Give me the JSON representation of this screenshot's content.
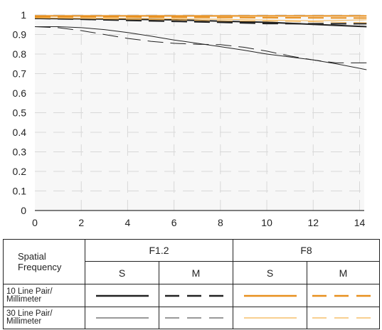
{
  "chart_data": {
    "type": "line",
    "xlim": [
      0,
      14
    ],
    "ylim": [
      0,
      1
    ],
    "xticks": [
      "0",
      "2",
      "4",
      "6",
      "8",
      "10",
      "12",
      "14"
    ],
    "yticks": [
      "0",
      "0.1",
      "0.2",
      "0.3",
      "0.4",
      "0.5",
      "0.6",
      "0.7",
      "0.8",
      "0.9",
      "1"
    ],
    "grid": true,
    "series": [
      {
        "name": "F1.2 S 10 Line Pair/Millimeter",
        "color": "#222222",
        "style": "solid",
        "width": 2.0,
        "x": [
          0,
          2,
          4,
          6,
          8,
          10,
          12,
          14.3
        ],
        "y": [
          0.982,
          0.98,
          0.978,
          0.975,
          0.968,
          0.962,
          0.952,
          0.94
        ]
      },
      {
        "name": "F1.2 M 10 Line Pair/Millimeter",
        "color": "#222222",
        "style": "dashed",
        "width": 2.0,
        "x": [
          0,
          2,
          4,
          6,
          8,
          10,
          12,
          14.3
        ],
        "y": [
          0.982,
          0.978,
          0.972,
          0.967,
          0.962,
          0.956,
          0.955,
          0.955
        ]
      },
      {
        "name": "F1.2 S 30 Line Pair/Millimeter",
        "color": "#222222",
        "style": "solid",
        "width": 1.0,
        "x": [
          0,
          1,
          2,
          3,
          4,
          5,
          6,
          7,
          8,
          9,
          10,
          11,
          12,
          13,
          14.3
        ],
        "y": [
          0.94,
          0.94,
          0.935,
          0.925,
          0.91,
          0.892,
          0.872,
          0.855,
          0.838,
          0.82,
          0.8,
          0.785,
          0.77,
          0.75,
          0.72
        ]
      },
      {
        "name": "F1.2 M 30 Line Pair/Millimeter",
        "color": "#222222",
        "style": "dashed",
        "width": 1.0,
        "x": [
          0,
          1,
          2,
          3,
          4,
          5,
          6,
          7,
          8,
          9,
          10,
          11,
          12,
          13,
          14.3
        ],
        "y": [
          0.94,
          0.935,
          0.92,
          0.9,
          0.88,
          0.865,
          0.855,
          0.85,
          0.848,
          0.835,
          0.815,
          0.79,
          0.77,
          0.755,
          0.755
        ]
      },
      {
        "name": "F8 S 10 Line Pair/Millimeter",
        "color": "#e8901e",
        "style": "solid",
        "width": 2.0,
        "x": [
          0,
          2,
          4,
          6,
          8,
          10,
          12,
          14.3
        ],
        "y": [
          0.995,
          0.995,
          0.995,
          0.995,
          0.995,
          0.995,
          0.995,
          0.995
        ]
      },
      {
        "name": "F8 M 10 Line Pair/Millimeter",
        "color": "#e8901e",
        "style": "dashed",
        "width": 2.0,
        "x": [
          0,
          2,
          4,
          6,
          8,
          10,
          12,
          14.3
        ],
        "y": [
          0.99,
          0.99,
          0.99,
          0.988,
          0.987,
          0.986,
          0.985,
          0.984
        ]
      },
      {
        "name": "F8 S 30 Line Pair/Millimeter",
        "color": "#f3b24e",
        "style": "solid",
        "width": 1.0,
        "x": [
          0,
          2,
          4,
          6,
          8,
          10,
          12,
          14.3
        ],
        "y": [
          0.985,
          0.983,
          0.982,
          0.98,
          0.978,
          0.974,
          0.97,
          0.975
        ]
      },
      {
        "name": "F8 M 30 Line Pair/Millimeter",
        "color": "#f3b24e",
        "style": "dashed",
        "width": 1.0,
        "x": [
          0,
          2,
          4,
          6,
          8,
          10,
          12,
          14.3
        ],
        "y": [
          0.985,
          0.982,
          0.978,
          0.975,
          0.97,
          0.968,
          0.965,
          0.96
        ]
      }
    ]
  },
  "legend": {
    "spatial_frequency_line1": "Spatial",
    "spatial_frequency_line2": "Frequency",
    "aperture_1": "F1.2",
    "aperture_2": "F8",
    "s_label_1": "S",
    "m_label_1": "M",
    "s_label_2": "S",
    "m_label_2": "M",
    "row1_line1": "10 Line Pair/",
    "row1_line2": "Millimeter",
    "row2_line1": "30 Line Pair/",
    "row2_line2": "Millimeter"
  }
}
